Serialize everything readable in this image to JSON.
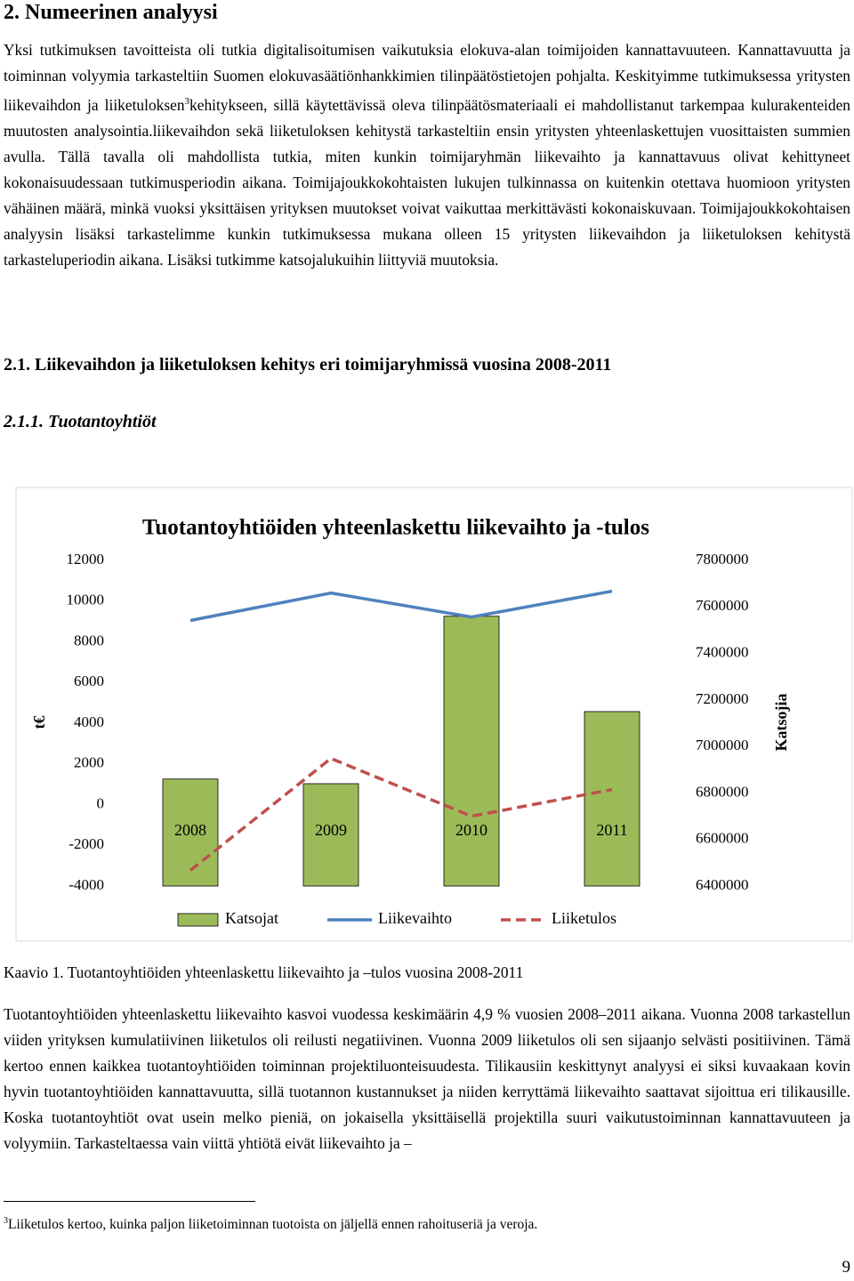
{
  "heading": "2. Numeerinen analyysi",
  "paragraph1": {
    "before": "Yksi tutkimuksen tavoitteista oli tutkia digitalisoitumisen vaikutuksia elokuva-alan toimijoiden kannattavuuteen. Kannattavuutta ja toiminnan volyymia tarkasteltiin Suomen elokuvasäätiönhankkimien tilinpäätöstietojen pohjalta. Keskityimme tutkimuksessa yritysten liikevaihdon ja liiketuloksen",
    "footnote_ref": "3",
    "after": "kehitykseen, sillä käytettävissä oleva tilinpäätösmateriaali ei mahdollistanut tarkempaa kulurakenteiden muutosten analysointia.liikevaihdon sekä liiketuloksen kehitystä tarkasteltiin ensin yritysten yhteenlaskettujen vuosittaisten summien avulla. Tällä tavalla oli mahdollista tutkia, miten kunkin toimijaryhmän liikevaihto ja kannattavuus olivat kehittyneet kokonaisuudessaan tutkimusperiodin aikana. Toimijajoukkokohtaisten lukujen tulkinnassa on kuitenkin otettava huomioon yritysten vähäinen määrä, minkä vuoksi yksittäisen yrityksen muutokset voivat vaikuttaa merkittävästi kokonaiskuvaan. Toimijajoukkokohtaisen analyysin lisäksi tarkastelimme kunkin tutkimuksessa mukana olleen 15 yritysten liikevaihdon ja liiketuloksen kehitystä tarkasteluperiodin aikana. Lisäksi tutkimme katsojalukuihin liittyviä muutoksia."
  },
  "subheading": "2.1. Liikevaihdon ja liiketuloksen kehitys eri toimijaryhmissä vuosina 2008-2011",
  "subsubheading": "2.1.1. Tuotantoyhtiöt",
  "chart_data": {
    "type": "bar_line",
    "title": "Tuotantoyhtiöiden yhteenlaskettu liikevaihto ja -tulos",
    "ylabel": "t€",
    "y2label": "Katsojia",
    "categories": [
      "2008",
      "2009",
      "2010",
      "2011"
    ],
    "ylim": [
      -4000,
      12000
    ],
    "yticks": [
      -4000,
      -2000,
      0,
      2000,
      4000,
      6000,
      8000,
      10000,
      12000
    ],
    "y2lim": [
      6400000,
      7800000
    ],
    "y2ticks": [
      6400000,
      6600000,
      6800000,
      7000000,
      7200000,
      7400000,
      7600000,
      7800000
    ],
    "series": [
      {
        "name": "Katsojat",
        "type": "bar",
        "axis": "y2",
        "color": "#9bbb59",
        "values": [
          6860000,
          6840000,
          7560000,
          7150000
        ]
      },
      {
        "name": "Liikevaihto",
        "type": "line",
        "color": "#4f81bd",
        "values": [
          9050,
          10400,
          9220,
          10490
        ]
      },
      {
        "name": "Liiketulos",
        "type": "dashed-line",
        "color": "#c0504d",
        "values": [
          -3230,
          2270,
          -570,
          740
        ]
      }
    ]
  },
  "caption": "Kaavio 1. Tuotantoyhtiöiden yhteenlaskettu liikevaihto ja –tulos vuosina 2008-2011",
  "paragraph2": "Tuotantoyhtiöiden yhteenlaskettu liikevaihto kasvoi vuodessa keskimäärin 4,9 % vuosien 2008–2011 aikana. Vuonna 2008 tarkastellun viiden yrityksen kumulatiivinen liiketulos oli reilusti negatiivinen. Vuonna 2009 liiketulos oli sen sijaanjo selvästi positiivinen. Tämä kertoo ennen kaikkea tuotantoyhtiöiden toiminnan projektiluonteisuudesta. Tilikausiin keskittynyt analyysi ei siksi kuvaakaan kovin hyvin tuotantoyhtiöiden kannattavuutta, sillä tuotannon kustannukset ja niiden kerryttämä liikevaihto saattavat sijoittua eri tilikausille. Koska tuotantoyhtiöt ovat usein melko pieniä, on jokaisella yksittäisellä projektilla suuri vaikutustoiminnan kannattavuuteen ja volyymiin. Tarkasteltaessa vain viittä yhtiötä eivät liikevaihto ja –",
  "footnote": {
    "number": "3",
    "text": "Liiketulos kertoo, kuinka paljon liiketoiminnan tuotoista on jäljellä ennen rahoituseriä ja veroja."
  },
  "page_number": "9"
}
